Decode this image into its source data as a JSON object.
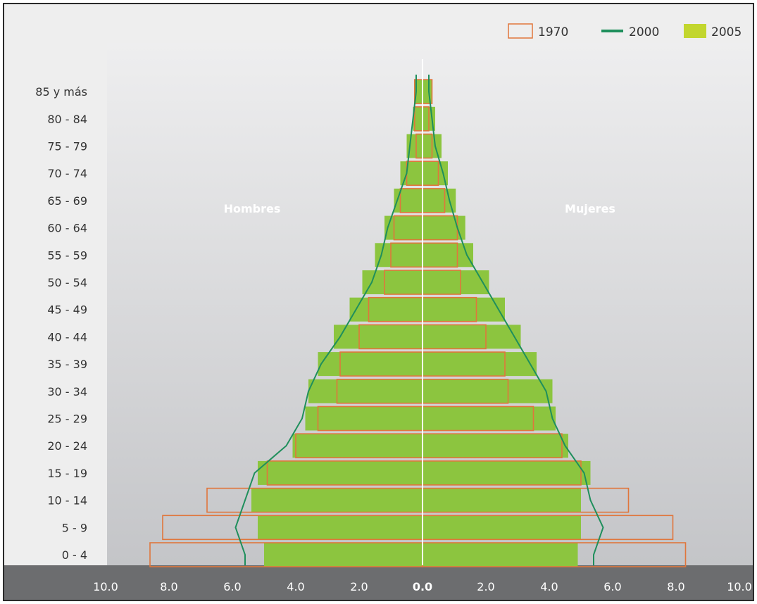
{
  "chart_data": {
    "type": "bar",
    "subtype": "population-pyramid",
    "categories": [
      "0 - 4",
      "5 - 9",
      "10 - 14",
      "15 - 19",
      "20 - 24",
      "25 - 29",
      "30 - 34",
      "35 - 39",
      "40 - 44",
      "45 - 49",
      "50 - 54",
      "55 - 59",
      "60 - 64",
      "65 - 69",
      "70 - 74",
      "75 - 79",
      "80 - 84",
      "85 y más"
    ],
    "left_label": "Hombres",
    "right_label": "Mujeres",
    "x_ticks": [
      "10.0",
      "8.0",
      "6.0",
      "4.0",
      "2.0",
      "0.0",
      "2.0",
      "4.0",
      "6.0",
      "8.0",
      "10.0"
    ],
    "xlim": [
      -10,
      10
    ],
    "grid": false,
    "legend_position": "top-right",
    "series": [
      {
        "name": "2005",
        "style": "bar",
        "color": "#8cc53f",
        "men": [
          5.0,
          5.2,
          5.4,
          5.2,
          4.1,
          3.7,
          3.6,
          3.3,
          2.8,
          2.3,
          1.9,
          1.5,
          1.2,
          0.9,
          0.7,
          0.5,
          0.3,
          0.25
        ],
        "women": [
          4.9,
          5.0,
          5.0,
          5.3,
          4.6,
          4.2,
          4.1,
          3.6,
          3.1,
          2.6,
          2.1,
          1.6,
          1.35,
          1.05,
          0.8,
          0.6,
          0.4,
          0.3
        ]
      },
      {
        "name": "1970",
        "style": "outline-bar",
        "color": "#e0763c",
        "men": [
          8.6,
          8.2,
          6.8,
          4.9,
          4.0,
          3.3,
          2.7,
          2.6,
          2.0,
          1.7,
          1.2,
          1.0,
          0.9,
          0.7,
          0.5,
          0.2,
          0.25,
          0.25
        ],
        "women": [
          8.3,
          7.9,
          6.5,
          5.0,
          4.4,
          3.5,
          2.7,
          2.6,
          2.0,
          1.7,
          1.2,
          1.1,
          1.1,
          0.7,
          0.5,
          0.3,
          0.2,
          0.3
        ]
      },
      {
        "name": "2000",
        "style": "line",
        "color": "#1f8f5c",
        "men": [
          5.6,
          5.9,
          5.6,
          5.3,
          4.3,
          3.8,
          3.6,
          3.2,
          2.6,
          2.1,
          1.6,
          1.3,
          1.1,
          0.8,
          0.5,
          0.4,
          0.3,
          0.2
        ],
        "women": [
          5.4,
          5.7,
          5.3,
          5.1,
          4.5,
          4.1,
          3.9,
          3.4,
          2.9,
          2.4,
          1.9,
          1.4,
          1.1,
          0.85,
          0.65,
          0.4,
          0.3,
          0.2
        ]
      }
    ]
  },
  "colors": {
    "plot_background": "#d4d5d7",
    "label_background": "#eeeeee",
    "axis_bar": "#6c6d6f",
    "center_line": "#ffffff"
  }
}
